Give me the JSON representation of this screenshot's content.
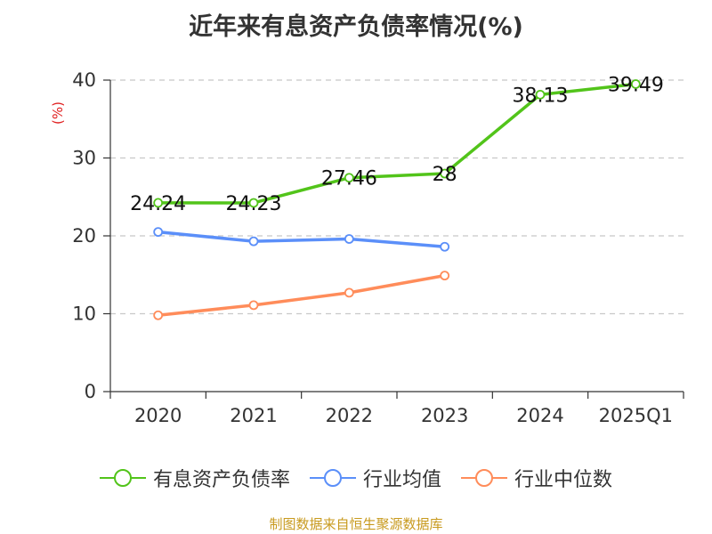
{
  "title": "近年来有息资产负债率情况(%)",
  "source": "制图数据来自恒生聚源数据库",
  "chart_data": {
    "type": "line",
    "categories": [
      "2020",
      "2021",
      "2022",
      "2023",
      "2024",
      "2025Q1"
    ],
    "ylabel": "(%)",
    "ylim": [
      0,
      40
    ],
    "yticks": [
      0,
      10,
      20,
      30,
      40
    ],
    "grid": true,
    "legend_position": "bottom",
    "series": [
      {
        "name": "有息资产负债率",
        "color": "#52c41a",
        "values": [
          24.24,
          24.23,
          27.46,
          28,
          38.13,
          39.49
        ],
        "labels": [
          "24.24",
          "24.23",
          "27.46",
          "28",
          "38.13",
          "39.49"
        ]
      },
      {
        "name": "行业均值",
        "color": "#5b8ff9",
        "values": [
          20.5,
          19.3,
          19.6,
          18.6,
          null,
          null
        ]
      },
      {
        "name": "行业中位数",
        "color": "#ff8c5a",
        "values": [
          9.8,
          11.1,
          12.7,
          14.9,
          null,
          null
        ]
      }
    ]
  }
}
